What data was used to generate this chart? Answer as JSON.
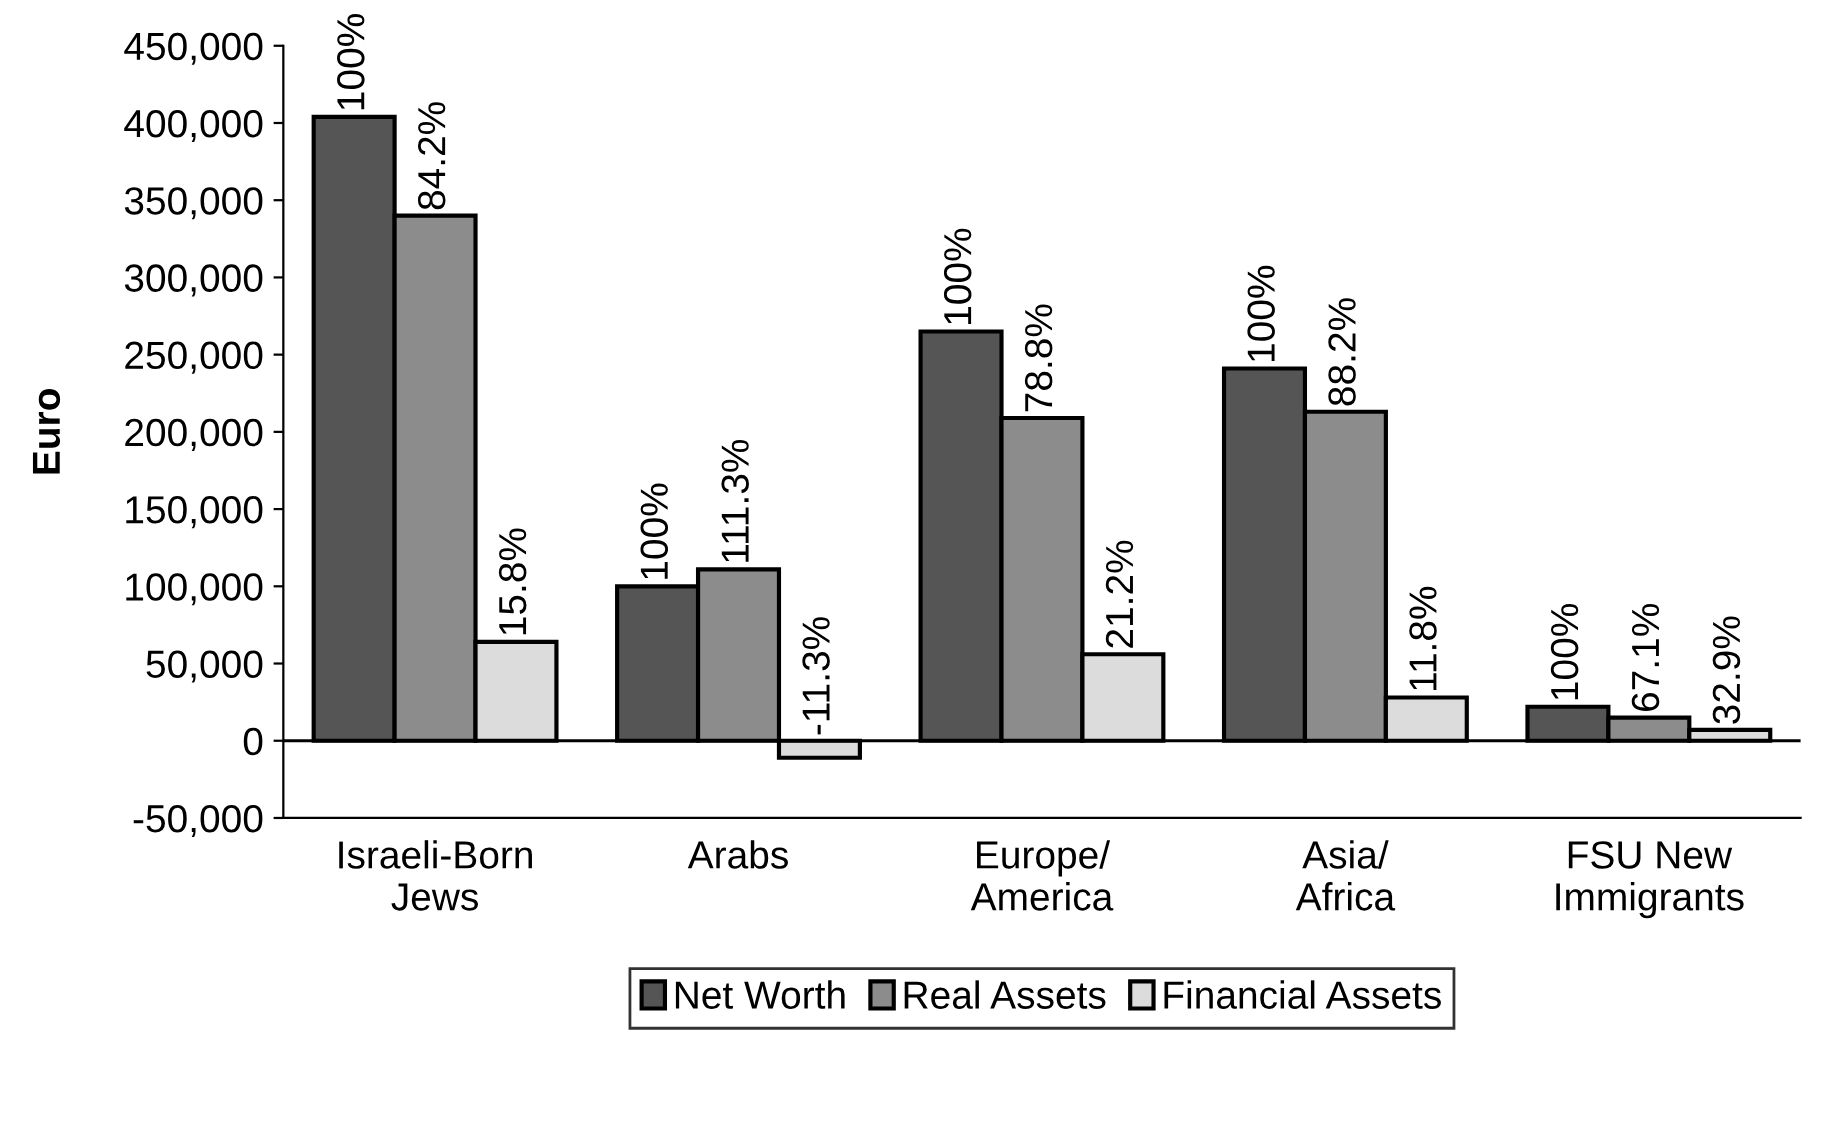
{
  "chart_data": {
    "type": "bar",
    "ylabel": "Euro",
    "categories": [
      "Israeli-Born\nJews",
      "Arabs",
      "Europe/\nAmerica",
      "Asia/\nAfrica",
      "FSU New\nImmigrants"
    ],
    "series": [
      {
        "name": "Net Worth",
        "color": "#555555",
        "values": [
          404000,
          100000,
          265000,
          241000,
          22000
        ]
      },
      {
        "name": "Real Assets",
        "color": "#8c8c8c",
        "values": [
          340000,
          111000,
          209000,
          213000,
          15000
        ]
      },
      {
        "name": "Financial Assets",
        "color": "#dcdcdc",
        "values": [
          64000,
          -11000,
          56000,
          28000,
          7000
        ]
      }
    ],
    "annotations": [
      "100%",
      "84.2%",
      "15.8%",
      "100%",
      "111.3%",
      "-11.3%",
      "100%",
      "78.8%",
      "21.2%",
      "100%",
      "88.2%",
      "11.8%",
      "100%",
      "67.1%",
      "32.9%"
    ],
    "ref_lines": [
      {
        "axis": "y",
        "value": 0,
        "color": "#000000"
      }
    ],
    "ylim": [
      -50000,
      450000
    ],
    "yticks": [
      {
        "value": -50000,
        "label": "-50,000"
      },
      {
        "value": 0,
        "label": "0"
      },
      {
        "value": 50000,
        "label": "50,000"
      },
      {
        "value": 100000,
        "label": "100,000"
      },
      {
        "value": 150000,
        "label": "150,000"
      },
      {
        "value": 200000,
        "label": "200,000"
      },
      {
        "value": 250000,
        "label": "250,000"
      },
      {
        "value": 300000,
        "label": "300,000"
      },
      {
        "value": 350000,
        "label": "350,000"
      },
      {
        "value": 400000,
        "label": "400,000"
      },
      {
        "value": 450000,
        "label": "450,000"
      }
    ],
    "legend": "bottom"
  }
}
